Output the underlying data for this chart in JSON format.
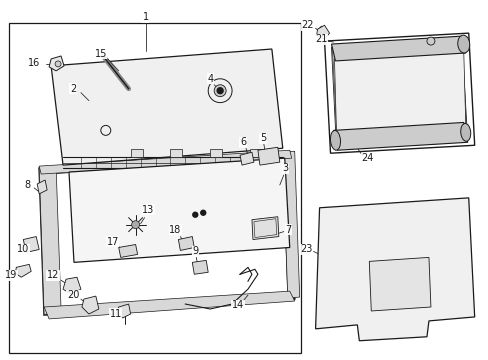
{
  "bg_color": "#ffffff",
  "fig_width": 4.89,
  "fig_height": 3.6,
  "dpi": 100,
  "line_color": "#1a1a1a",
  "label_fontsize": 7.0
}
